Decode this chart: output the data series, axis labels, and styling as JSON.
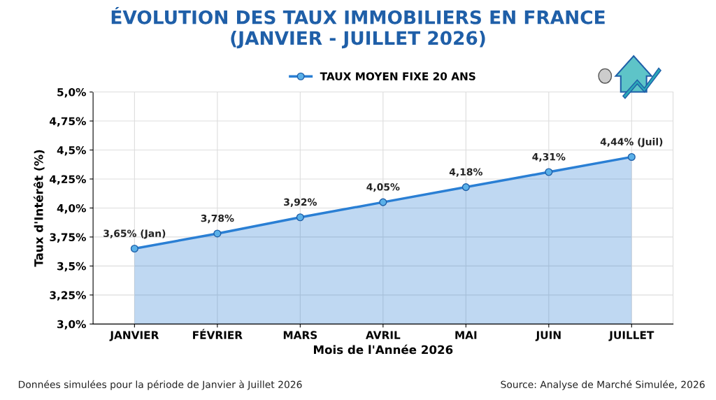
{
  "chart_data": {
    "type": "area",
    "title": "ÉVOLUTION DES TAUX IMMOBILIERS EN FRANCE\n(JANVIER - JUILLET 2026)",
    "xlabel": "Mois de l'Année 2026",
    "ylabel": "Taux d'Intérêt (%)",
    "categories": [
      "JANVIER",
      "FÉVRIER",
      "MARS",
      "AVRIL",
      "MAI",
      "JUIN",
      "JUILLET"
    ],
    "series": [
      {
        "name": "TAUX MOYEN FIXE 20 ANS",
        "color": "#2a7fd4",
        "values": [
          3.65,
          3.78,
          3.92,
          4.05,
          4.18,
          4.31,
          4.44
        ],
        "value_labels": [
          "3,65% (Jan)",
          "3,78%",
          "3,92%",
          "4,05%",
          "4,18%",
          "4,31%",
          "4,44% (Juil)"
        ]
      }
    ],
    "ylim": [
      3.0,
      5.0
    ],
    "yticks": [
      {
        "value": 3.0,
        "label": "3,0%"
      },
      {
        "value": 3.25,
        "label": "3,25%"
      },
      {
        "value": 3.5,
        "label": "3,5%"
      },
      {
        "value": 3.75,
        "label": "3,75%"
      },
      {
        "value": 4.0,
        "label": "4,0%"
      },
      {
        "value": 4.25,
        "label": "4,25%"
      },
      {
        "value": 4.5,
        "label": "4,5%"
      },
      {
        "value": 4.75,
        "label": "4,75%"
      },
      {
        "value": 5.0,
        "label": "5,0%"
      }
    ],
    "grid": true,
    "legend": "top",
    "marker": "circle",
    "line_style": "solid",
    "annotations": [
      "Données simulées pour la période de Janvier à Juillet 2026",
      "Source: Analyse de Marché Simulée, 2026"
    ]
  }
}
